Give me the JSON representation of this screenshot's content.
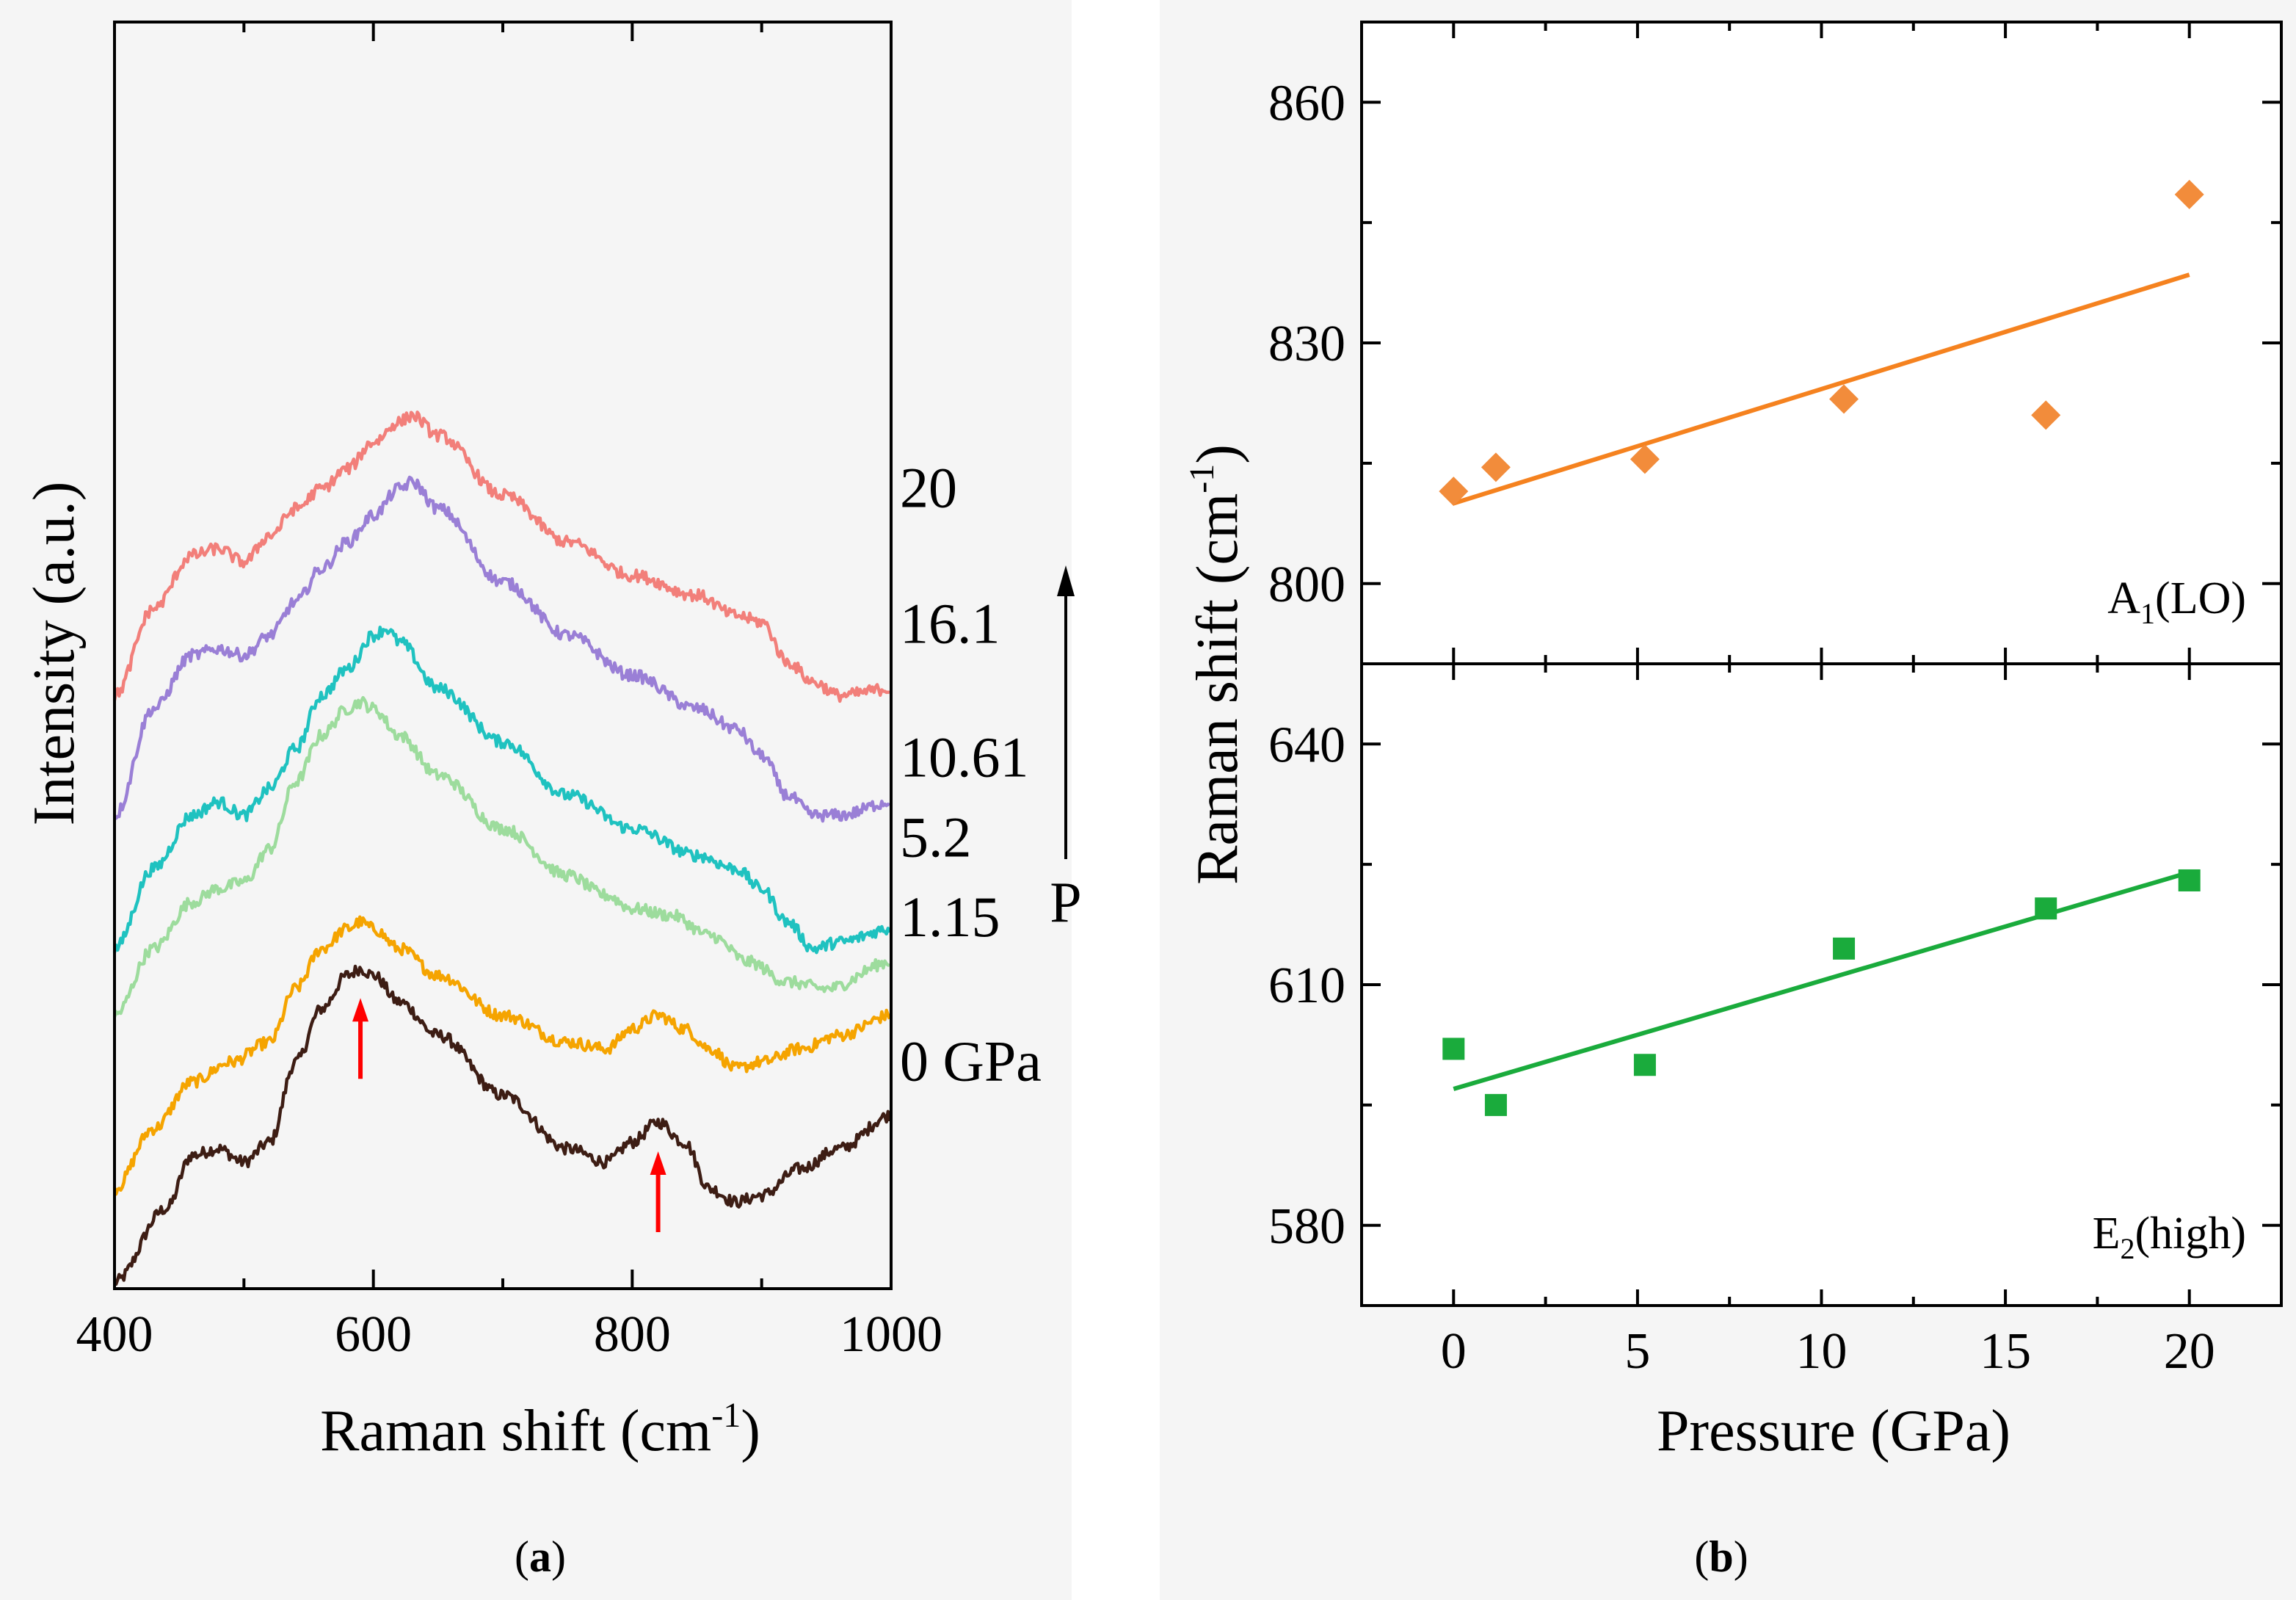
{
  "chart_data": [
    {
      "type": "line",
      "panel": "a",
      "caption_open": "(",
      "caption_letter": "a",
      "caption_close": ")",
      "title": "",
      "xlabel": "Raman shift (cm",
      "xlabel_sup": "-1",
      "xlabel_close": ")",
      "ylabel": "Intensity (a.u.)",
      "xlim": [
        400,
        1000
      ],
      "ylim": [
        -3.0,
        6.5
      ],
      "x_ticks": [
        400,
        600,
        800,
        1000
      ],
      "x_tick_labels": [
        "400",
        "600",
        "800",
        "1000"
      ],
      "x_minor_ticks": [
        500,
        700,
        900
      ],
      "noise_amplitude": 0.045,
      "series": [
        {
          "name": "0 GPa",
          "pressure": 0,
          "color": "#3d1d14",
          "offset": -2.95,
          "label": "0 GPa",
          "label_y": -1.3,
          "x": [
            400,
            440,
            460,
            480,
            500,
            520,
            540,
            560,
            580,
            590,
            600,
            620,
            650,
            700,
            750,
            780,
            800,
            820,
            840,
            860,
            880,
            900,
            930,
            960,
            1000
          ],
          "y": [
            0.0,
            0.55,
            0.95,
            1.0,
            0.9,
            1.05,
            1.65,
            2.05,
            2.3,
            2.35,
            2.3,
            2.1,
            1.85,
            1.4,
            1.0,
            0.9,
            1.05,
            1.2,
            1.05,
            0.7,
            0.6,
            0.65,
            0.85,
            1.0,
            1.25
          ]
        },
        {
          "name": "1.15 GPa",
          "pressure": 1.15,
          "color": "#f5a400",
          "offset": -2.25,
          "label": "1.15",
          "label_y": -0.22,
          "x": [
            400,
            430,
            460,
            490,
            520,
            540,
            560,
            580,
            590,
            600,
            620,
            650,
            700,
            750,
            780,
            800,
            820,
            840,
            860,
            880,
            900,
            930,
            960,
            1000
          ],
          "y": [
            0.0,
            0.45,
            0.8,
            0.95,
            1.1,
            1.5,
            1.8,
            1.95,
            2.0,
            1.95,
            1.8,
            1.6,
            1.3,
            1.1,
            1.05,
            1.2,
            1.3,
            1.2,
            1.05,
            0.9,
            0.95,
            1.05,
            1.15,
            1.3
          ]
        },
        {
          "name": "5.2 GPa",
          "pressure": 5.2,
          "color": "#9ddc9d",
          "offset": -0.95,
          "label": "5.2",
          "label_y": 0.38,
          "x": [
            400,
            430,
            460,
            480,
            500,
            520,
            540,
            560,
            580,
            590,
            600,
            620,
            650,
            700,
            750,
            780,
            800,
            830,
            860,
            890,
            920,
            950,
            1000
          ],
          "y": [
            0.0,
            0.5,
            0.85,
            0.95,
            1.0,
            1.25,
            1.75,
            2.1,
            2.3,
            2.35,
            2.3,
            2.1,
            1.8,
            1.4,
            1.05,
            0.9,
            0.8,
            0.75,
            0.6,
            0.4,
            0.25,
            0.2,
            0.4
          ]
        },
        {
          "name": "10.61 GPa",
          "pressure": 10.61,
          "color": "#1fc2c0",
          "offset": -0.45,
          "label": "10.61",
          "label_y": 0.98,
          "x": [
            400,
            430,
            460,
            480,
            500,
            520,
            540,
            560,
            580,
            600,
            610,
            620,
            650,
            700,
            750,
            800,
            850,
            880,
            900,
            920,
            940,
            960,
            1000
          ],
          "y": [
            0.0,
            0.6,
            1.0,
            1.1,
            1.0,
            1.2,
            1.5,
            1.9,
            2.1,
            2.35,
            2.4,
            2.3,
            1.95,
            1.55,
            1.15,
            0.9,
            0.7,
            0.6,
            0.45,
            0.2,
            0.0,
            0.05,
            0.15
          ]
        },
        {
          "name": "16.1 GPa",
          "pressure": 16.1,
          "color": "#9a7fd6",
          "offset": 0.55,
          "label": "16.1",
          "label_y": 1.98,
          "x": [
            400,
            430,
            460,
            480,
            500,
            520,
            540,
            560,
            580,
            600,
            620,
            630,
            650,
            700,
            750,
            800,
            850,
            880,
            900,
            920,
            940,
            960,
            1000
          ],
          "y": [
            0.0,
            0.8,
            1.2,
            1.25,
            1.2,
            1.35,
            1.6,
            1.85,
            2.05,
            2.25,
            2.45,
            2.5,
            2.3,
            1.75,
            1.35,
            1.05,
            0.8,
            0.65,
            0.45,
            0.15,
            0.0,
            0.0,
            0.1
          ]
        },
        {
          "name": "20 GPa",
          "pressure": 20,
          "color": "#f27f7a",
          "offset": 1.45,
          "label": "20",
          "label_y": 3.0,
          "x": [
            400,
            430,
            460,
            480,
            500,
            520,
            540,
            560,
            580,
            600,
            620,
            630,
            650,
            700,
            750,
            800,
            850,
            880,
            900,
            920,
            940,
            960,
            1000
          ],
          "y": [
            0.0,
            0.65,
            1.05,
            1.1,
            1.0,
            1.2,
            1.4,
            1.55,
            1.7,
            1.9,
            2.05,
            2.1,
            1.95,
            1.5,
            1.15,
            0.9,
            0.75,
            0.6,
            0.55,
            0.25,
            0.1,
            0.0,
            0.05
          ]
        }
      ],
      "annotations": {
        "pressure_arrow_label": "P",
        "peak_arrows": [
          {
            "x": 590,
            "description": "peak marker",
            "color": "#ff0000"
          },
          {
            "x": 820,
            "description": "peak marker",
            "color": "#ff0000"
          }
        ]
      }
    },
    {
      "type": "scatter",
      "panel": "b",
      "caption_open": "(",
      "caption_letter": "b",
      "caption_close": ")",
      "title": "",
      "xlabel": "Pressure (GPa)",
      "ylabel": "Raman shift (cm",
      "ylabel_sup": "-1",
      "ylabel_close": ")",
      "xlim": [
        -2.5,
        22.5
      ],
      "x_ticks": [
        0,
        5,
        10,
        15,
        20
      ],
      "x_tick_labels": [
        "0",
        "5",
        "10",
        "15",
        "20"
      ],
      "subplots": [
        {
          "name": "A1(LO)",
          "mode_main": "A",
          "mode_sub": "1",
          "mode_rest": "(LO)",
          "marker": "diamond",
          "color": "#f28c3b",
          "line_color": "#f5821f",
          "ylim": [
            790,
            870
          ],
          "y_ticks": [
            800,
            830,
            860
          ],
          "y_tick_labels": [
            "800",
            "830",
            "860"
          ],
          "x": [
            0,
            1.15,
            5.2,
            10.61,
            16.1,
            20
          ],
          "y": [
            811.5,
            814.5,
            815.5,
            823,
            821,
            848.5
          ],
          "fit": {
            "x": [
              0,
              20
            ],
            "y": [
              810.0,
              838.5
            ]
          }
        },
        {
          "name": "E2(high)",
          "mode_main": "E",
          "mode_sub": "2",
          "mode_rest": "(high)",
          "marker": "square",
          "color": "#1aab3c",
          "line_color": "#1aab3c",
          "ylim": [
            570,
            650
          ],
          "y_ticks": [
            580,
            610,
            640
          ],
          "y_tick_labels": [
            "580",
            "610",
            "640"
          ],
          "x": [
            0,
            1.15,
            5.2,
            10.61,
            16.1,
            20
          ],
          "y": [
            602,
            595,
            600,
            614.5,
            619.5,
            623
          ],
          "fit": {
            "x": [
              0,
              20
            ],
            "y": [
              597.0,
              624.0
            ]
          }
        }
      ]
    }
  ]
}
